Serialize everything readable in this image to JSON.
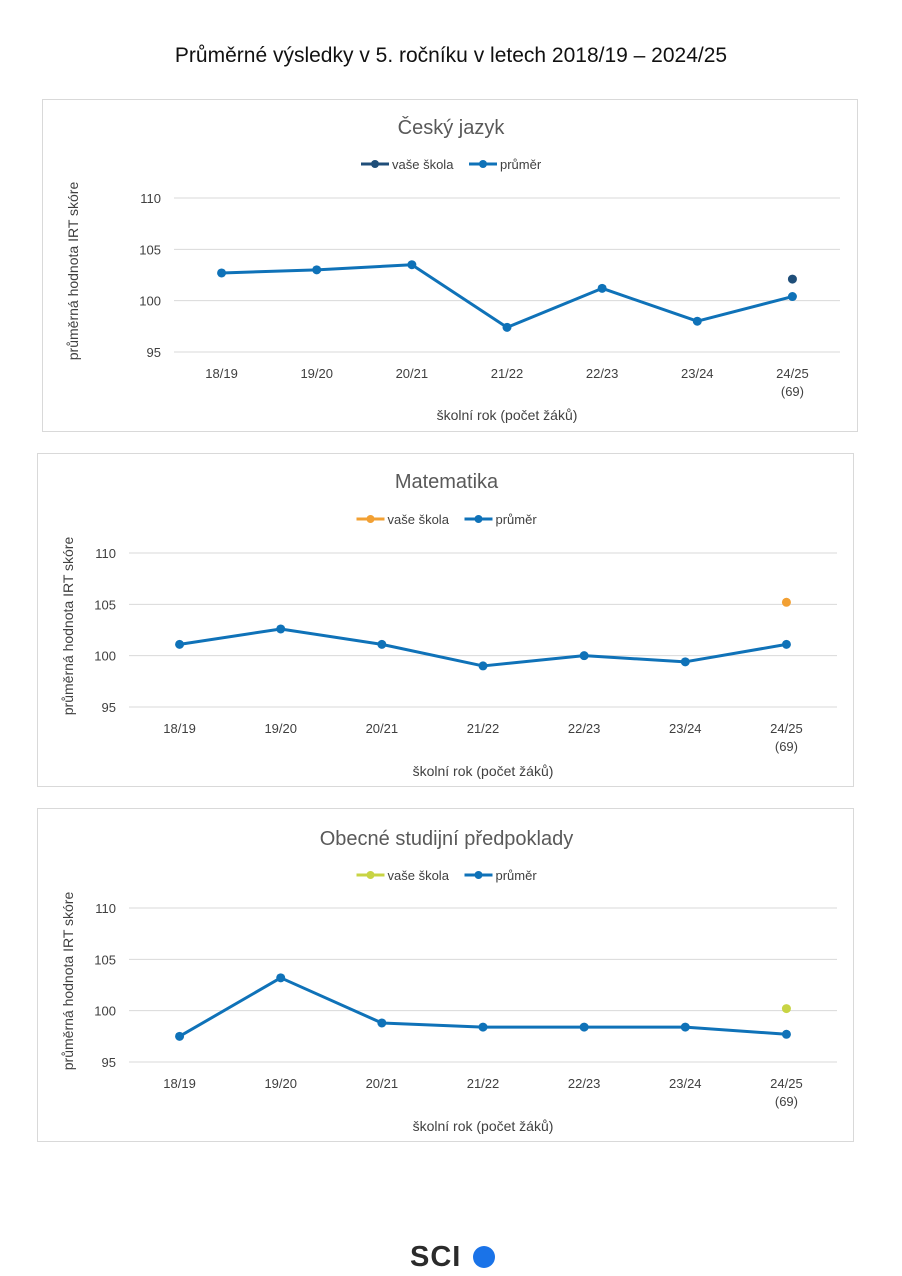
{
  "page_title": "Průměrné výsledky v 5. ročníku v letech 2018/19 – 2024/25",
  "logo": {
    "text": "SCI",
    "dot_color": "#1a73e8"
  },
  "chart_data": [
    {
      "type": "line",
      "title": "Český jazyk",
      "xlabel": "školní rok (počet žáků)",
      "ylabel": "průměrná hodnota IRT skóre",
      "categories": [
        "18/19",
        "19/20",
        "20/21",
        "21/22",
        "22/23",
        "23/24",
        "24/25"
      ],
      "category_sublabels": [
        "",
        "",
        "",
        "",
        "",
        "",
        "(69)"
      ],
      "yticks": [
        95,
        100,
        105,
        110
      ],
      "ylim": [
        95,
        110
      ],
      "grid": true,
      "legend_position": "top",
      "series": [
        {
          "name": "vaše škola",
          "color": "#1f4e79",
          "values": [
            null,
            null,
            null,
            null,
            null,
            null,
            102.1
          ]
        },
        {
          "name": "průměr",
          "color": "#0f72b8",
          "values": [
            102.7,
            103.0,
            103.5,
            97.4,
            101.2,
            98.0,
            100.4
          ]
        }
      ]
    },
    {
      "type": "line",
      "title": "Matematika",
      "xlabel": "školní rok (počet žáků)",
      "ylabel": "průměrná hodnota IRT skóre",
      "categories": [
        "18/19",
        "19/20",
        "20/21",
        "21/22",
        "22/23",
        "23/24",
        "24/25"
      ],
      "category_sublabels": [
        "",
        "",
        "",
        "",
        "",
        "",
        "(69)"
      ],
      "yticks": [
        95,
        100,
        105,
        110
      ],
      "ylim": [
        95,
        110
      ],
      "grid": true,
      "legend_position": "top",
      "series": [
        {
          "name": "vaše škola",
          "color": "#f2a033",
          "values": [
            null,
            null,
            null,
            null,
            null,
            null,
            105.2
          ]
        },
        {
          "name": "průměr",
          "color": "#0f72b8",
          "values": [
            101.1,
            102.6,
            101.1,
            99.0,
            100.0,
            99.4,
            101.1
          ]
        }
      ]
    },
    {
      "type": "line",
      "title": "Obecné studijní předpoklady",
      "xlabel": "školní rok (počet žáků)",
      "ylabel": "průměrná hodnota IRT skóre",
      "categories": [
        "18/19",
        "19/20",
        "20/21",
        "21/22",
        "22/23",
        "23/24",
        "24/25"
      ],
      "category_sublabels": [
        "",
        "",
        "",
        "",
        "",
        "",
        "(69)"
      ],
      "yticks": [
        95,
        100,
        105,
        110
      ],
      "ylim": [
        95,
        110
      ],
      "grid": true,
      "legend_position": "top",
      "series": [
        {
          "name": "vaše škola",
          "color": "#c8d444",
          "values": [
            null,
            null,
            null,
            null,
            null,
            null,
            100.2
          ]
        },
        {
          "name": "průměr",
          "color": "#0f72b8",
          "values": [
            97.5,
            103.2,
            98.8,
            98.4,
            98.4,
            98.4,
            97.7
          ]
        }
      ]
    }
  ]
}
